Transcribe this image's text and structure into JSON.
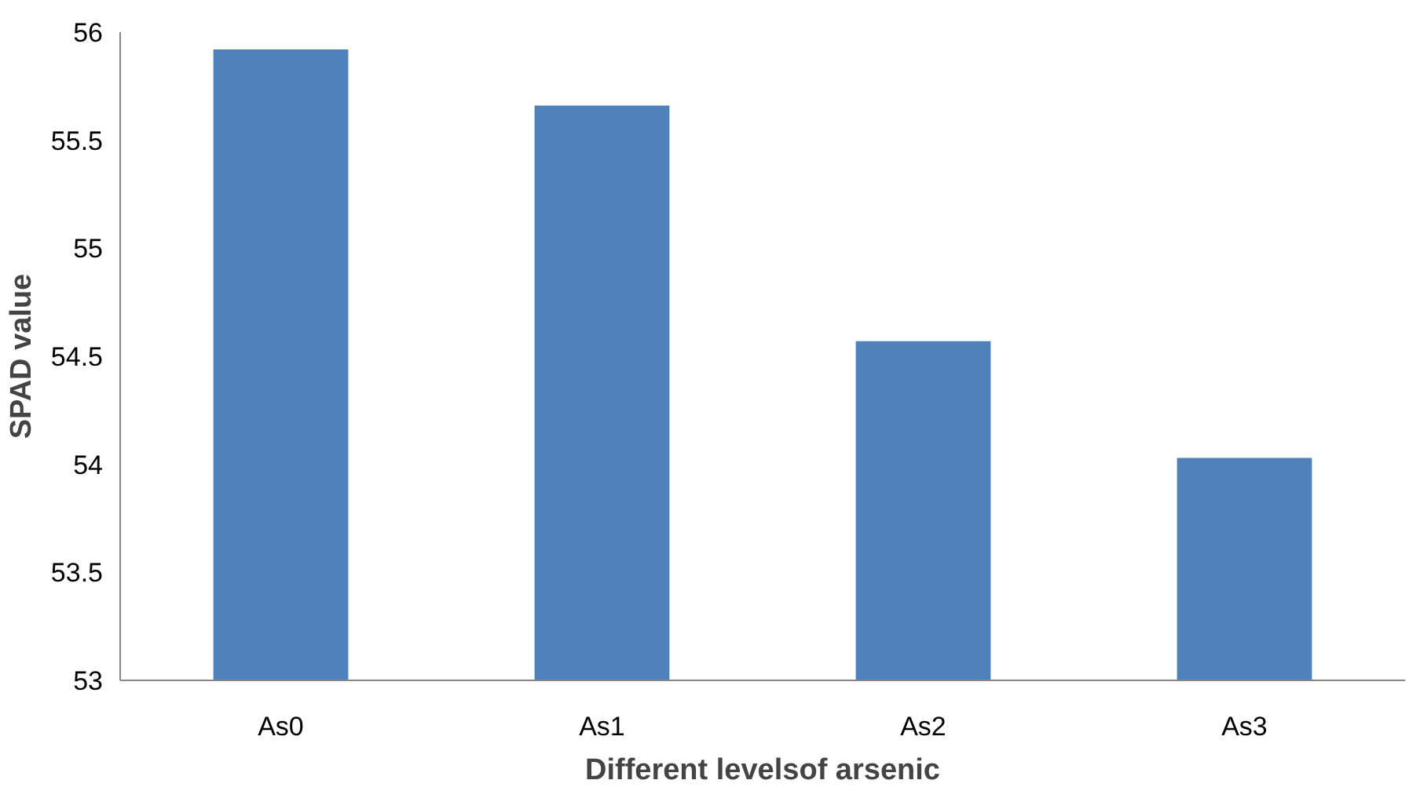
{
  "chart_data": {
    "type": "bar",
    "xlabel": "Different levelsof arsenic",
    "ylabel": "SPAD value",
    "categories": [
      "As0",
      "As1",
      "As2",
      "As3"
    ],
    "series": [
      {
        "color": "#4f81bd",
        "values": [
          55.92,
          55.66,
          54.57,
          54.03
        ]
      }
    ],
    "ylim": [
      53,
      56
    ],
    "yticks": [
      53,
      53.5,
      54,
      54.5,
      55,
      55.5,
      56
    ],
    "grid": false
  }
}
